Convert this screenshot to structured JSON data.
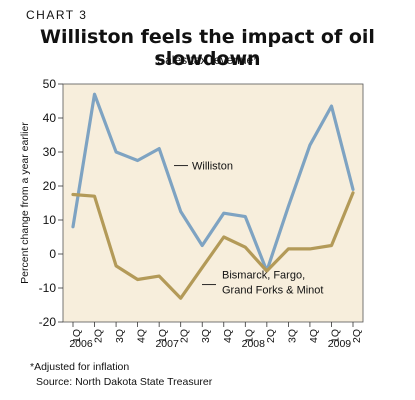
{
  "chart_number": "CHART 3",
  "title": "Williston feels the impact of oil slowdown",
  "subtitle": "Sales tax revenue*",
  "footnote": "*Adjusted for inflation",
  "source": "Source: North Dakota State Treasurer",
  "chart_data": {
    "type": "line",
    "ylabel": "Percent change from a year earlier",
    "ylim": [
      -20,
      50
    ],
    "yticks": [
      50,
      40,
      30,
      20,
      10,
      0,
      -10,
      -20
    ],
    "x": [
      "1Q",
      "2Q",
      "3Q",
      "4Q",
      "1Q",
      "2Q",
      "3Q",
      "4Q",
      "1Q",
      "2Q",
      "3Q",
      "4Q",
      "1Q",
      "2Q"
    ],
    "years": [
      {
        "label": "2006",
        "index": 0
      },
      {
        "label": "2007",
        "index": 4
      },
      {
        "label": "2008",
        "index": 8
      },
      {
        "label": "2009",
        "index": 12
      }
    ],
    "series": [
      {
        "name": "Williston",
        "color": "#7ea3c2",
        "values": [
          8,
          47,
          30,
          27.5,
          31,
          12.5,
          2.5,
          12,
          11,
          -5,
          14,
          32,
          43.5,
          19
        ]
      },
      {
        "name": "Bismarck, Fargo, Grand Forks & Minot",
        "color": "#b39a58",
        "values": [
          17.5,
          17,
          -3.5,
          -7.5,
          -6.5,
          -13,
          -4,
          5,
          2,
          -5,
          1.5,
          1.5,
          2.5,
          18
        ]
      }
    ],
    "annotations": [
      {
        "text": "Williston",
        "series": 0
      },
      {
        "text": "Bismarck, Fargo,",
        "series": 1
      },
      {
        "text": "Grand Forks & Minot",
        "series": 1
      }
    ],
    "plot_background": "#f7eedc",
    "grid": false
  }
}
